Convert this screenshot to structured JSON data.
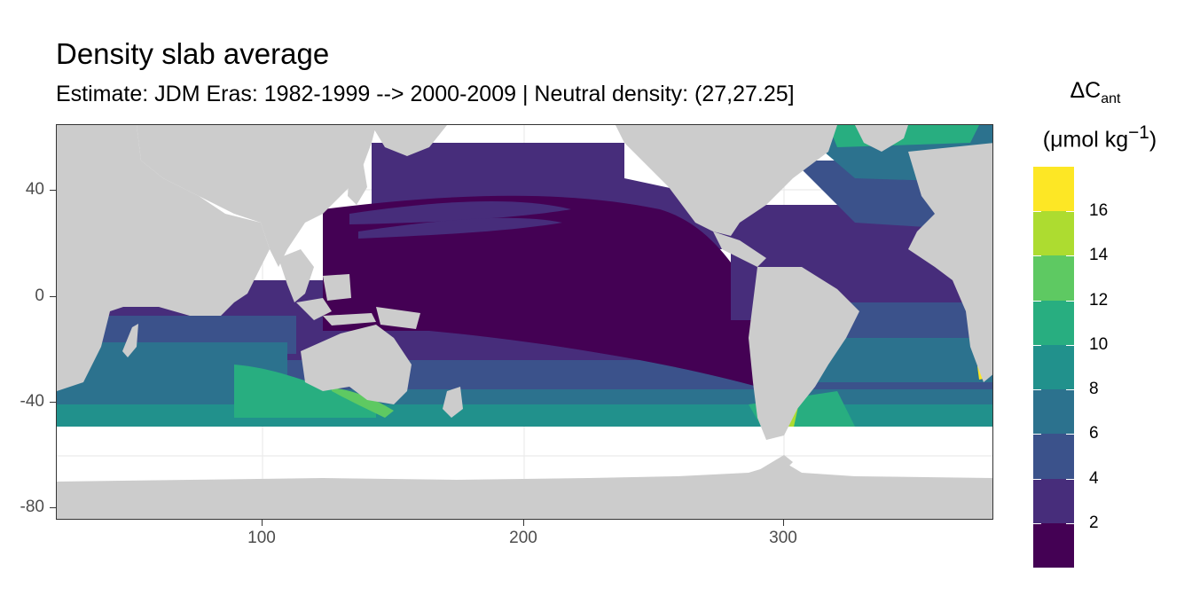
{
  "title": "Density slab average",
  "subtitle": "Estimate: JDM Eras: 1982-1999 --> 2000-2009 | Neutral density: (27,27.25]",
  "legend": {
    "title_main": "ΔC",
    "title_sub": "ant",
    "unit_prefix": "(μmol kg",
    "unit_sup": "−1",
    "unit_suffix": ")",
    "labels": [
      "16",
      "14",
      "12",
      "10",
      "8",
      "6",
      "4",
      "2"
    ]
  },
  "axes": {
    "x_ticks": [
      "100",
      "200",
      "300"
    ],
    "y_ticks": [
      "40",
      "0",
      "-40",
      "-80"
    ]
  },
  "chart_data": {
    "type": "heatmap",
    "title": "Density slab average",
    "subtitle": "Estimate: JDM Eras: 1982-1999 --> 2000-2009 | Neutral density: (27,27.25]",
    "xlim": [
      20,
      380
    ],
    "ylim": [
      -85,
      65
    ],
    "x_ticks": [
      100,
      200,
      300
    ],
    "y_ticks": [
      40,
      0,
      -40,
      -80
    ],
    "grid": true,
    "legend_position": "right",
    "colorbar": {
      "title": "ΔC_ant (μmol kg⁻¹)",
      "bins": [
        {
          "range": [
            0,
            2
          ],
          "color": "#440154"
        },
        {
          "range": [
            2,
            4
          ],
          "color": "#472d7b"
        },
        {
          "range": [
            4,
            6
          ],
          "color": "#3b528b"
        },
        {
          "range": [
            6,
            8
          ],
          "color": "#2c728e"
        },
        {
          "range": [
            8,
            10
          ],
          "color": "#21918c"
        },
        {
          "range": [
            10,
            12
          ],
          "color": "#28ae80"
        },
        {
          "range": [
            12,
            14
          ],
          "color": "#5ec962"
        },
        {
          "range": [
            14,
            16
          ],
          "color": "#addc30"
        },
        {
          "range": [
            16,
            18
          ],
          "color": "#fde725"
        }
      ],
      "tick_labels": [
        2,
        4,
        6,
        8,
        10,
        12,
        14,
        16
      ]
    },
    "colors": {
      "land": "#cccccc",
      "no_data": "#ffffff",
      "gridline": "#ebebeb"
    }
  }
}
